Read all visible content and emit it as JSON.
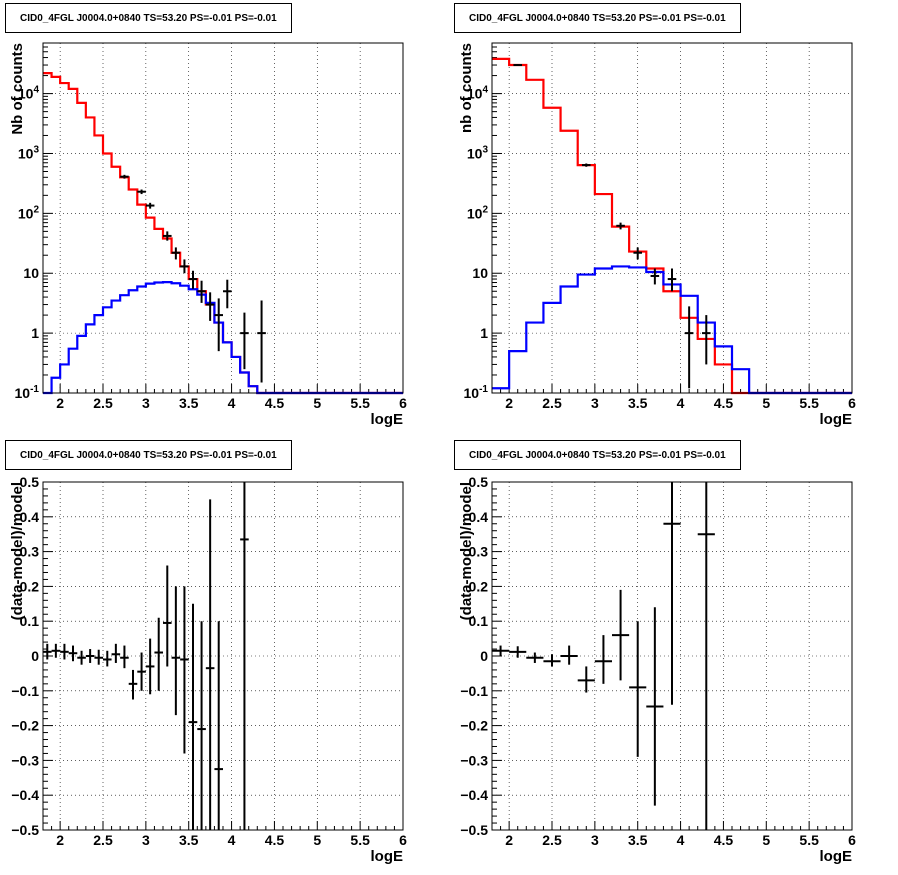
{
  "pads": [
    {
      "title": "CID0_4FGL J0004.0+0840 TS=53.20 PS=-0.01 PS=-0.01"
    },
    {
      "title": "CID0_4FGL J0004.0+0840 TS=53.20 PS=-0.01 PS=-0.01"
    },
    {
      "title": "CID0_4FGL J0004.0+0840 TS=53.20 PS=-0.01 PS=-0.01"
    },
    {
      "title": "CID0_4FGL J0004.0+0840 TS=53.20 PS=-0.01 PS=-0.01"
    }
  ],
  "colors": {
    "total_model": "#ff0000",
    "source_model": "#0000ff",
    "data": "#000000"
  },
  "chart_data": [
    {
      "type": "line",
      "xlabel": "logE",
      "ylabel": "Nb of counts",
      "xlim": [
        1.8,
        6.0
      ],
      "ylim": [
        0.1,
        70000
      ],
      "yscale": "log",
      "grid": true,
      "x_ticks": [
        "2",
        "2.5",
        "3",
        "3.5",
        "4",
        "4.5",
        "5",
        "5.5",
        "6"
      ],
      "y_ticks": [
        "10^-1",
        "1",
        "10",
        "10^2",
        "10^3",
        "10^4"
      ],
      "bin_edges": [
        1.8,
        1.9,
        2.0,
        2.1,
        2.2,
        2.3,
        2.4,
        2.5,
        2.6,
        2.7,
        2.8,
        2.9,
        3.0,
        3.1,
        3.2,
        3.3,
        3.4,
        3.5,
        3.6,
        3.7,
        3.8,
        3.9,
        4.0,
        4.1,
        4.2,
        4.3,
        4.4,
        4.5,
        4.6,
        4.7,
        4.8,
        4.9,
        5.0,
        5.1,
        5.2,
        5.3,
        5.4,
        5.5,
        5.6,
        5.7,
        5.8,
        5.9,
        6.0
      ],
      "series": [
        {
          "name": "total_model",
          "values": [
            22000,
            19000,
            15000,
            12000,
            7000,
            4000,
            2000,
            1000,
            600,
            400,
            250,
            140,
            85,
            55,
            38,
            22,
            13,
            8,
            5,
            3,
            1.5,
            0.7,
            0.4,
            0.22,
            0.13,
            0.1,
            0.1,
            0.1,
            0.1,
            0.1,
            0.1,
            0.1,
            0.1,
            0.1,
            0.1,
            0.1,
            0.1,
            0.1,
            0.1,
            0.1,
            0.1,
            0.1
          ]
        },
        {
          "name": "source_model",
          "values": [
            0.1,
            0.18,
            0.3,
            0.55,
            0.9,
            1.4,
            2.0,
            2.7,
            3.5,
            4.3,
            5.2,
            6.0,
            6.7,
            7.0,
            7.1,
            6.8,
            6.2,
            5.4,
            4.4,
            3.2,
            1.5,
            0.7,
            0.4,
            0.22,
            0.13,
            0.1,
            0.1,
            0.1,
            0.1,
            0.1,
            0.1,
            0.1,
            0.1,
            0.1,
            0.1,
            0.1,
            0.1,
            0.1,
            0.1,
            0.1,
            0.1,
            0.1
          ]
        }
      ],
      "points": [
        {
          "x": 2.75,
          "y": 410,
          "lo": 380,
          "hi": 440
        },
        {
          "x": 2.95,
          "y": 230,
          "lo": 210,
          "hi": 250
        },
        {
          "x": 3.05,
          "y": 135,
          "lo": 120,
          "hi": 150
        },
        {
          "x": 3.25,
          "y": 42,
          "lo": 35,
          "hi": 50
        },
        {
          "x": 3.35,
          "y": 22,
          "lo": 17,
          "hi": 27
        },
        {
          "x": 3.45,
          "y": 13,
          "lo": 10,
          "hi": 17
        },
        {
          "x": 3.55,
          "y": 8,
          "lo": 5.5,
          "hi": 11
        },
        {
          "x": 3.65,
          "y": 5,
          "lo": 3.2,
          "hi": 7.5
        },
        {
          "x": 3.75,
          "y": 3,
          "lo": 1.6,
          "hi": 4.8
        },
        {
          "x": 3.85,
          "y": 2,
          "lo": 0.5,
          "hi": 3.8
        },
        {
          "x": 3.95,
          "y": 5,
          "lo": 2.6,
          "hi": 7.8
        },
        {
          "x": 4.15,
          "y": 1,
          "lo": 0.25,
          "hi": 2.2
        },
        {
          "x": 4.35,
          "y": 1,
          "lo": 0.15,
          "hi": 3.5
        }
      ]
    },
    {
      "type": "line",
      "xlabel": "logE",
      "ylabel": "nb of counts",
      "xlim": [
        1.8,
        6.0
      ],
      "ylim": [
        0.1,
        70000
      ],
      "yscale": "log",
      "grid": true,
      "x_ticks": [
        "2",
        "2.5",
        "3",
        "3.5",
        "4",
        "4.5",
        "5",
        "5.5",
        "6"
      ],
      "y_ticks": [
        "10^-1",
        "1",
        "10",
        "10^2",
        "10^3",
        "10^4"
      ],
      "bin_edges": [
        1.8,
        2.0,
        2.2,
        2.4,
        2.6,
        2.8,
        3.0,
        3.2,
        3.4,
        3.6,
        3.8,
        4.0,
        4.2,
        4.4,
        4.6,
        4.8,
        5.0,
        5.2,
        5.4,
        5.6,
        5.8,
        6.0
      ],
      "series": [
        {
          "name": "total_model",
          "values": [
            38000,
            30000,
            17000,
            5800,
            2400,
            640,
            210,
            60,
            23,
            12,
            5,
            1.8,
            0.8,
            0.3,
            0.1,
            0.1,
            0.1,
            0.1,
            0.1,
            0.1,
            0.1
          ]
        },
        {
          "name": "source_model",
          "values": [
            0.12,
            0.5,
            1.5,
            3.2,
            6.0,
            9.5,
            12.0,
            13.0,
            12.5,
            10.5,
            6.5,
            4.2,
            1.5,
            0.6,
            0.25,
            0.1,
            0.1,
            0.1,
            0.1,
            0.1,
            0.1
          ]
        }
      ],
      "points": [
        {
          "x": 2.1,
          "y": 30000,
          "lo": 29000,
          "hi": 31000
        },
        {
          "x": 2.9,
          "y": 640,
          "lo": 600,
          "hi": 680
        },
        {
          "x": 3.3,
          "y": 62,
          "lo": 54,
          "hi": 70
        },
        {
          "x": 3.5,
          "y": 22,
          "lo": 17,
          "hi": 27
        },
        {
          "x": 3.7,
          "y": 9,
          "lo": 6.5,
          "hi": 12
        },
        {
          "x": 3.9,
          "y": 8,
          "lo": 5,
          "hi": 12
        },
        {
          "x": 4.1,
          "y": 1,
          "lo": 0.12,
          "hi": 2.8
        },
        {
          "x": 4.3,
          "y": 1,
          "lo": 0.3,
          "hi": 2.0
        }
      ]
    },
    {
      "type": "scatter",
      "xlabel": "logE",
      "ylabel": "(data-model)/model",
      "xlim": [
        1.8,
        6.0
      ],
      "ylim": [
        -0.5,
        0.5
      ],
      "grid": true,
      "x_ticks": [
        "2",
        "2.5",
        "3",
        "3.5",
        "4",
        "4.5",
        "5",
        "5.5",
        "6"
      ],
      "y_ticks": [
        "−0.5",
        "−0.4",
        "−0.3",
        "−0.2",
        "−0.1",
        "0",
        "0.1",
        "0.2",
        "0.3",
        "0.4",
        "0.5"
      ],
      "points": [
        {
          "x": 1.85,
          "y": 0.012,
          "xerr": 0.05,
          "lo": -0.01,
          "hi": 0.035
        },
        {
          "x": 1.95,
          "y": 0.015,
          "xerr": 0.05,
          "lo": -0.005,
          "hi": 0.035
        },
        {
          "x": 2.05,
          "y": 0.012,
          "xerr": 0.05,
          "lo": -0.01,
          "hi": 0.035
        },
        {
          "x": 2.15,
          "y": 0.008,
          "xerr": 0.05,
          "lo": -0.015,
          "hi": 0.03
        },
        {
          "x": 2.25,
          "y": -0.005,
          "xerr": 0.05,
          "lo": -0.025,
          "hi": 0.015
        },
        {
          "x": 2.35,
          "y": 0.0,
          "xerr": 0.05,
          "lo": -0.02,
          "hi": 0.02
        },
        {
          "x": 2.45,
          "y": -0.005,
          "xerr": 0.05,
          "lo": -0.025,
          "hi": 0.018
        },
        {
          "x": 2.55,
          "y": -0.01,
          "xerr": 0.05,
          "lo": -0.03,
          "hi": 0.015
        },
        {
          "x": 2.65,
          "y": 0.005,
          "xerr": 0.05,
          "lo": -0.02,
          "hi": 0.035
        },
        {
          "x": 2.75,
          "y": -0.005,
          "xerr": 0.05,
          "lo": -0.035,
          "hi": 0.03
        },
        {
          "x": 2.85,
          "y": -0.08,
          "xerr": 0.05,
          "lo": -0.125,
          "hi": -0.04
        },
        {
          "x": 2.95,
          "y": -0.045,
          "xerr": 0.05,
          "lo": -0.1,
          "hi": 0.01
        },
        {
          "x": 3.05,
          "y": -0.03,
          "xerr": 0.05,
          "lo": -0.11,
          "hi": 0.05
        },
        {
          "x": 3.15,
          "y": 0.01,
          "xerr": 0.05,
          "lo": -0.1,
          "hi": 0.11
        },
        {
          "x": 3.25,
          "y": 0.095,
          "xerr": 0.05,
          "lo": -0.03,
          "hi": 0.26
        },
        {
          "x": 3.35,
          "y": -0.005,
          "xerr": 0.05,
          "lo": -0.17,
          "hi": 0.2
        },
        {
          "x": 3.45,
          "y": -0.01,
          "xerr": 0.05,
          "lo": -0.28,
          "hi": 0.2
        },
        {
          "x": 3.55,
          "y": -0.19,
          "xerr": 0.05,
          "lo": -0.5,
          "hi": 0.15
        },
        {
          "x": 3.65,
          "y": -0.21,
          "xerr": 0.05,
          "lo": -0.5,
          "hi": 0.1
        },
        {
          "x": 3.75,
          "y": -0.035,
          "xerr": 0.05,
          "lo": -0.5,
          "hi": 0.45
        },
        {
          "x": 3.85,
          "y": -0.325,
          "xerr": 0.05,
          "lo": -0.5,
          "hi": 0.1
        },
        {
          "x": 4.15,
          "y": 0.335,
          "xerr": 0.05,
          "lo": -0.5,
          "hi": 0.5
        }
      ]
    },
    {
      "type": "scatter",
      "xlabel": "logE",
      "ylabel": "(data-model)/model",
      "xlim": [
        1.8,
        6.0
      ],
      "ylim": [
        -0.5,
        0.5
      ],
      "grid": true,
      "x_ticks": [
        "2",
        "2.5",
        "3",
        "3.5",
        "4",
        "4.5",
        "5",
        "5.5",
        "6"
      ],
      "y_ticks": [
        "−0.5",
        "−0.4",
        "−0.3",
        "−0.2",
        "−0.1",
        "0",
        "0.1",
        "0.2",
        "0.3",
        "0.4",
        "0.5"
      ],
      "points": [
        {
          "x": 1.9,
          "y": 0.015,
          "xerr": 0.1,
          "lo": 0.0,
          "hi": 0.03
        },
        {
          "x": 2.1,
          "y": 0.012,
          "xerr": 0.1,
          "lo": -0.005,
          "hi": 0.028
        },
        {
          "x": 2.3,
          "y": -0.005,
          "xerr": 0.1,
          "lo": -0.02,
          "hi": 0.01
        },
        {
          "x": 2.5,
          "y": -0.015,
          "xerr": 0.1,
          "lo": -0.03,
          "hi": 0.005
        },
        {
          "x": 2.7,
          "y": 0.0,
          "xerr": 0.1,
          "lo": -0.025,
          "hi": 0.03
        },
        {
          "x": 2.9,
          "y": -0.07,
          "xerr": 0.1,
          "lo": -0.105,
          "hi": -0.03
        },
        {
          "x": 3.1,
          "y": -0.015,
          "xerr": 0.1,
          "lo": -0.08,
          "hi": 0.06
        },
        {
          "x": 3.3,
          "y": 0.06,
          "xerr": 0.1,
          "lo": -0.07,
          "hi": 0.19
        },
        {
          "x": 3.5,
          "y": -0.09,
          "xerr": 0.1,
          "lo": -0.29,
          "hi": 0.1
        },
        {
          "x": 3.7,
          "y": -0.145,
          "xerr": 0.1,
          "lo": -0.43,
          "hi": 0.14
        },
        {
          "x": 3.9,
          "y": 0.38,
          "xerr": 0.1,
          "lo": -0.14,
          "hi": 0.5
        },
        {
          "x": 4.3,
          "y": 0.35,
          "xerr": 0.1,
          "lo": -0.5,
          "hi": 0.5
        }
      ]
    }
  ]
}
